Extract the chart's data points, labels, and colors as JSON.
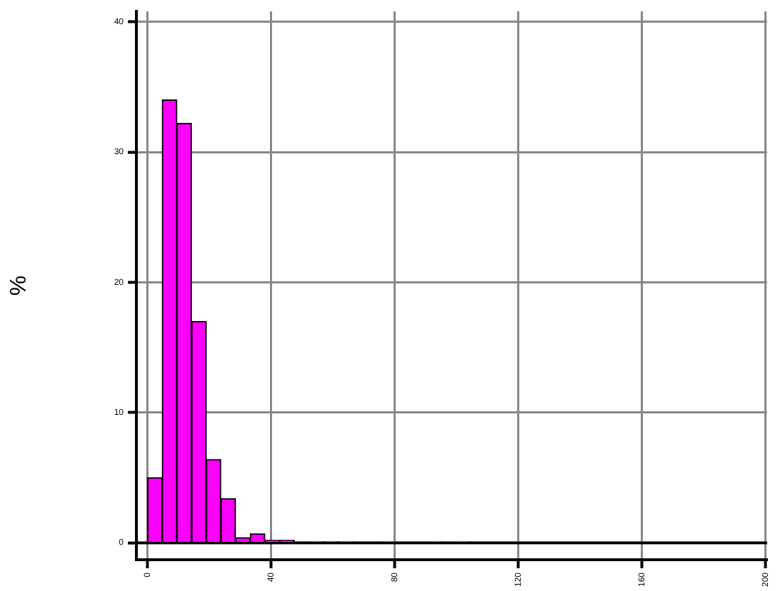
{
  "chart_data": {
    "type": "histogram",
    "ylabel": "%",
    "color": "#ff00ff",
    "bins": [
      0,
      4.75,
      9.5,
      14.25,
      19,
      23.75,
      28.5,
      33.25,
      38,
      42.75,
      47.5,
      52.25,
      57,
      61.75,
      66.5,
      71.25,
      76,
      80.75,
      85.5,
      90.25,
      95,
      99.75,
      104.5,
      109.25,
      114,
      118.75,
      123.5,
      128.25,
      133,
      137.75,
      142.5,
      147.25,
      152,
      156.75,
      161.5,
      166.25,
      171,
      175.75,
      180.5,
      185.25,
      190
    ],
    "values": [
      5,
      34,
      32.2,
      17,
      6.4,
      3.4,
      0.4,
      0.7,
      0.2,
      0.2,
      0,
      0.1,
      0.1,
      0.1,
      0,
      0,
      0.1,
      0,
      0,
      0.1,
      0,
      0.1,
      0,
      0,
      0,
      0,
      0,
      0,
      0,
      0,
      0,
      0,
      0,
      0,
      0,
      0,
      0,
      0,
      0,
      0
    ],
    "xlim": [
      -3.6,
      200.5
    ],
    "xticks": [
      0,
      40,
      80,
      120,
      160,
      200
    ],
    "ylim": [
      -1.3,
      40.8
    ],
    "yticks": [
      0,
      10,
      20,
      30,
      40
    ],
    "grid": true
  }
}
